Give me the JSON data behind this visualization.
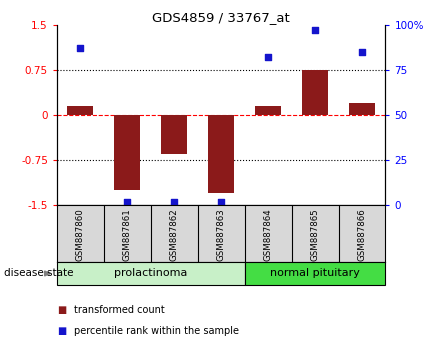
{
  "title": "GDS4859 / 33767_at",
  "samples": [
    "GSM887860",
    "GSM887861",
    "GSM887862",
    "GSM887863",
    "GSM887864",
    "GSM887865",
    "GSM887866"
  ],
  "transformed_count": [
    0.15,
    -1.25,
    -0.65,
    -1.3,
    0.15,
    0.75,
    0.2
  ],
  "percentile_rank": [
    87,
    2,
    2,
    2,
    82,
    97,
    85
  ],
  "ylim_left": [
    -1.5,
    1.5
  ],
  "ylim_right": [
    0,
    100
  ],
  "yticks_left": [
    -1.5,
    -0.75,
    0,
    0.75,
    1.5
  ],
  "yticks_right": [
    0,
    25,
    50,
    75,
    100
  ],
  "groups": [
    {
      "label": "prolactinoma",
      "start": 0,
      "end": 3,
      "color": "#c8f0c8"
    },
    {
      "label": "normal pituitary",
      "start": 4,
      "end": 6,
      "color": "#44dd44"
    }
  ],
  "bar_color": "#8b1a1a",
  "dot_color": "#1414cc",
  "sample_bg_color": "#d8d8d8",
  "group_label_prefix": "disease state",
  "legend_items": [
    {
      "label": "transformed count",
      "color": "#8b1a1a"
    },
    {
      "label": "percentile rank within the sample",
      "color": "#1414cc"
    }
  ]
}
